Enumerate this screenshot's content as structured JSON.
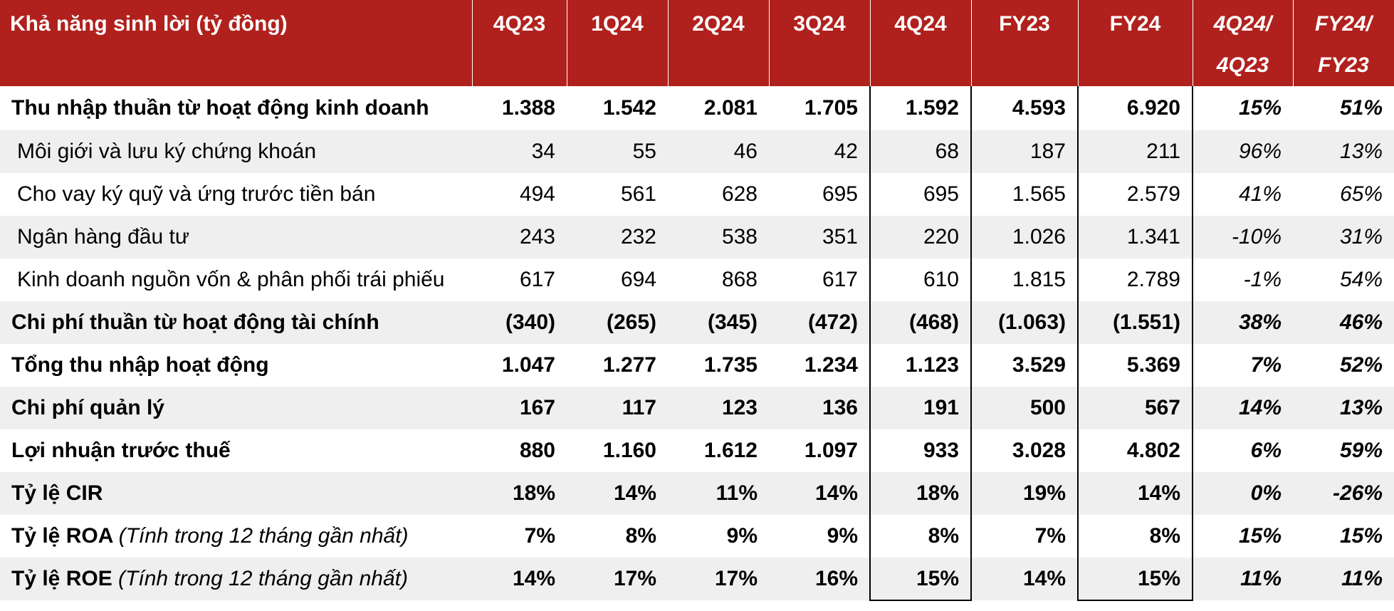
{
  "header": {
    "title": "Khả năng sinh lời (tỷ đồng)",
    "columns": [
      "4Q23",
      "1Q24",
      "2Q24",
      "3Q24",
      "4Q24",
      "FY23",
      "FY24"
    ],
    "ratio_cols": [
      {
        "line1": "4Q24/",
        "line2": "4Q23"
      },
      {
        "line1": "FY24/",
        "line2": "FY23"
      }
    ]
  },
  "rows": [
    {
      "label": "Thu nhập thuần từ hoạt động kinh doanh",
      "note": "",
      "values": [
        "1.388",
        "1.542",
        "2.081",
        "1.705",
        "1.592",
        "4.593",
        "6.920"
      ],
      "ratios": [
        "15%",
        "51%"
      ]
    },
    {
      "label": "Môi giới và lưu ký chứng khoán",
      "note": "",
      "values": [
        "34",
        "55",
        "46",
        "42",
        "68",
        "187",
        "211"
      ],
      "ratios": [
        "96%",
        "13%"
      ]
    },
    {
      "label": "Cho vay ký quỹ và ứng trước tiền bán",
      "note": "",
      "values": [
        "494",
        "561",
        "628",
        "695",
        "695",
        "1.565",
        "2.579"
      ],
      "ratios": [
        "41%",
        "65%"
      ]
    },
    {
      "label": "Ngân hàng đầu tư",
      "note": "",
      "values": [
        "243",
        "232",
        "538",
        "351",
        "220",
        "1.026",
        "1.341"
      ],
      "ratios": [
        "-10%",
        "31%"
      ]
    },
    {
      "label": "Kinh doanh nguồn vốn & phân phối trái phiếu",
      "note": "",
      "values": [
        "617",
        "694",
        "868",
        "617",
        "610",
        "1.815",
        "2.789"
      ],
      "ratios": [
        "-1%",
        "54%"
      ]
    },
    {
      "label": "Chi phí thuần từ hoạt động tài chính",
      "note": "",
      "values": [
        "(340)",
        "(265)",
        "(345)",
        "(472)",
        "(468)",
        "(1.063)",
        "(1.551)"
      ],
      "ratios": [
        "38%",
        "46%"
      ]
    },
    {
      "label": "Tổng thu nhập hoạt động",
      "note": "",
      "values": [
        "1.047",
        "1.277",
        "1.735",
        "1.234",
        "1.123",
        "3.529",
        "5.369"
      ],
      "ratios": [
        "7%",
        "52%"
      ]
    },
    {
      "label": "Chi phí quản lý",
      "note": "",
      "values": [
        "167",
        "117",
        "123",
        "136",
        "191",
        "500",
        "567"
      ],
      "ratios": [
        "14%",
        "13%"
      ]
    },
    {
      "label": "Lợi nhuận trước thuế",
      "note": "",
      "values": [
        "880",
        "1.160",
        "1.612",
        "1.097",
        "933",
        "3.028",
        "4.802"
      ],
      "ratios": [
        "6%",
        "59%"
      ]
    },
    {
      "label": "Tỷ lệ CIR",
      "note": "",
      "values": [
        "18%",
        "14%",
        "11%",
        "14%",
        "18%",
        "19%",
        "14%"
      ],
      "ratios": [
        "0%",
        "-26%"
      ]
    },
    {
      "label": "Tỷ lệ ROA ",
      "note": "(Tính trong 12 tháng gần nhất)",
      "values": [
        "7%",
        "8%",
        "9%",
        "9%",
        "8%",
        "7%",
        "8%"
      ],
      "ratios": [
        "15%",
        "15%"
      ]
    },
    {
      "label": "Tỷ lệ ROE ",
      "note": "(Tính trong 12 tháng gần nhất)",
      "values": [
        "14%",
        "17%",
        "17%",
        "16%",
        "15%",
        "14%",
        "15%"
      ],
      "ratios": [
        "11%",
        "11%"
      ]
    }
  ]
}
